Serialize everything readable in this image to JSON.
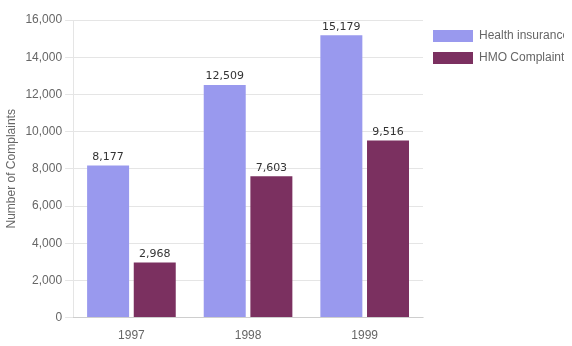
{
  "chart_data": {
    "type": "bar",
    "categories": [
      "1997",
      "1998",
      "1999"
    ],
    "series": [
      {
        "name": "Health insurance complaints",
        "color": "#9999ee",
        "values": [
          8177,
          12509,
          15179
        ],
        "value_labels": [
          "8,177",
          "12,509",
          "15,179"
        ]
      },
      {
        "name": "HMO Complaints",
        "color": "#7b3060",
        "values": [
          2968,
          7603,
          9516
        ],
        "value_labels": [
          "2,968",
          "7,603",
          "9,516"
        ]
      }
    ],
    "ylabel": "Number of Complaints",
    "ylim": [
      0,
      16000
    ],
    "yticks": [
      0,
      {
        "value": 2000,
        "label": "2,000"
      },
      {
        "value": 4000,
        "label": "4,000"
      },
      {
        "value": 6000,
        "label": "6,000"
      },
      {
        "value": 8000,
        "label": "8,000"
      },
      {
        "value": 10000,
        "label": "10,000"
      },
      {
        "value": 12000,
        "label": "12,000"
      },
      {
        "value": 14000,
        "label": "14,000"
      },
      {
        "value": 16000,
        "label": "16,000"
      }
    ],
    "grid": true,
    "legend": "right",
    "data_labels": true
  }
}
